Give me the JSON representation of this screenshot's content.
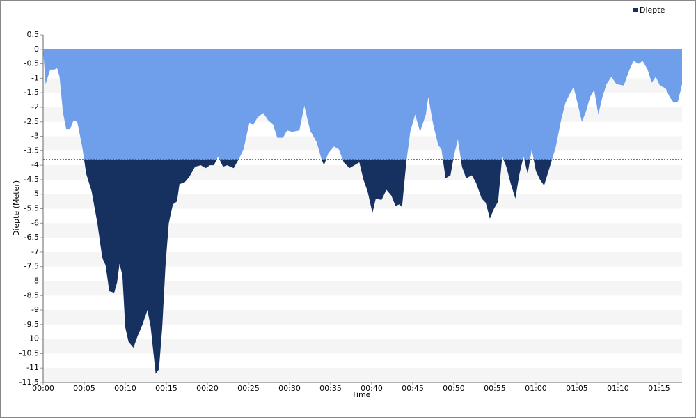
{
  "chart_data": {
    "type": "area",
    "x_label": "Time",
    "y_label": "Diepte (Meter)",
    "x": [
      0,
      0.3,
      0.85,
      1.35,
      1.7,
      2.0,
      2.4,
      2.8,
      3.3,
      3.7,
      4.15,
      4.75,
      5.25,
      5.9,
      6.6,
      7.2,
      7.6,
      8.05,
      8.65,
      9.0,
      9.3,
      9.65,
      10.0,
      10.4,
      11.0,
      11.5,
      12.1,
      12.7,
      13.1,
      13.7,
      14.1,
      14.5,
      14.9,
      15.3,
      15.8,
      16.3,
      16.6,
      17.2,
      17.8,
      18.5,
      19.2,
      19.8,
      20.3,
      20.8,
      21.3,
      21.9,
      22.4,
      23.2,
      23.9,
      24.4,
      25.1,
      25.6,
      26.1,
      26.8,
      27.4,
      28.0,
      28.5,
      29.2,
      29.7,
      30.3,
      31.2,
      31.8,
      32.5,
      33.3,
      33.9,
      34.2,
      34.7,
      35.4,
      36.0,
      36.6,
      37.3,
      37.9,
      38.5,
      39.0,
      39.5,
      40.1,
      40.5,
      41.2,
      41.8,
      42.4,
      42.9,
      43.4,
      43.7,
      44.2,
      44.7,
      45.3,
      45.9,
      46.6,
      46.9,
      47.5,
      48.1,
      48.5,
      49.0,
      49.6,
      50.0,
      50.5,
      51.0,
      51.5,
      52.2,
      52.7,
      53.4,
      53.9,
      54.4,
      54.9,
      55.4,
      55.9,
      56.4,
      56.9,
      57.5,
      58.0,
      58.5,
      59.0,
      59.5,
      60.0,
      60.5,
      61.0,
      61.7,
      62.4,
      63.1,
      63.6,
      64.1,
      64.6,
      65.1,
      65.6,
      66.1,
      66.6,
      67.1,
      67.6,
      68.1,
      68.6,
      69.2,
      69.8,
      70.7,
      71.4,
      71.9,
      72.5,
      73.0,
      73.6,
      74.1,
      74.6,
      75.1,
      75.8,
      76.3,
      76.8,
      77.3,
      77.8
    ],
    "series": [
      {
        "name": "Diepte",
        "color": "#16305f",
        "values": [
          0,
          -1.2,
          -0.7,
          -0.7,
          -0.65,
          -0.95,
          -2.15,
          -2.75,
          -2.75,
          -2.45,
          -2.5,
          -3.35,
          -4.3,
          -4.9,
          -6.0,
          -7.2,
          -7.45,
          -8.35,
          -8.4,
          -8.05,
          -7.4,
          -7.8,
          -9.6,
          -10.1,
          -10.3,
          -9.9,
          -9.5,
          -9.0,
          -9.6,
          -11.2,
          -11.05,
          -9.6,
          -7.45,
          -6.0,
          -5.35,
          -5.25,
          -4.65,
          -4.6,
          -4.4,
          -4.05,
          -4.0,
          -4.1,
          -4.0,
          -4.0,
          -3.7,
          -4.05,
          -4.0,
          -4.1,
          -3.75,
          -3.45,
          -2.55,
          -2.6,
          -2.35,
          -2.2,
          -2.45,
          -2.6,
          -3.05,
          -3.05,
          -2.8,
          -2.85,
          -2.8,
          -1.95,
          -2.8,
          -3.2,
          -3.8,
          -4.0,
          -3.6,
          -3.35,
          -3.45,
          -3.9,
          -4.1,
          -4.0,
          -3.9,
          -4.5,
          -4.9,
          -5.65,
          -5.15,
          -5.2,
          -4.85,
          -5.05,
          -5.4,
          -5.35,
          -5.45,
          -3.95,
          -2.85,
          -2.25,
          -2.85,
          -2.25,
          -1.65,
          -2.6,
          -3.3,
          -3.45,
          -4.45,
          -4.35,
          -3.7,
          -3.1,
          -4.05,
          -4.45,
          -4.35,
          -4.6,
          -5.15,
          -5.3,
          -5.85,
          -5.5,
          -5.25,
          -3.7,
          -4.05,
          -4.6,
          -5.15,
          -4.3,
          -3.7,
          -4.3,
          -3.45,
          -4.2,
          -4.5,
          -4.7,
          -4.05,
          -3.4,
          -2.4,
          -1.85,
          -1.55,
          -1.3,
          -1.9,
          -2.5,
          -2.15,
          -1.65,
          -1.4,
          -2.25,
          -1.65,
          -1.2,
          -0.95,
          -1.2,
          -1.25,
          -0.7,
          -0.4,
          -0.5,
          -0.4,
          -0.7,
          -1.15,
          -0.95,
          -1.25,
          -1.35,
          -1.65,
          -1.85,
          -1.8,
          -1.2
        ]
      }
    ],
    "above_threshold_color": "#6f9fea",
    "threshold": -3.8,
    "threshold_color": "#3a3acc",
    "xlim": [
      0,
      77.8
    ],
    "ylim": [
      -11.5,
      0.5
    ],
    "xticks": [
      {
        "value": 0,
        "label": "00:00"
      },
      {
        "value": 5,
        "label": "00:05"
      },
      {
        "value": 10,
        "label": "00:10"
      },
      {
        "value": 15,
        "label": "00:15"
      },
      {
        "value": 20,
        "label": "00:20"
      },
      {
        "value": 25,
        "label": "00:25"
      },
      {
        "value": 30,
        "label": "00:30"
      },
      {
        "value": 35,
        "label": "00:35"
      },
      {
        "value": 40,
        "label": "00:40"
      },
      {
        "value": 45,
        "label": "00:45"
      },
      {
        "value": 50,
        "label": "00:50"
      },
      {
        "value": 55,
        "label": "00:55"
      },
      {
        "value": 60,
        "label": "01:00"
      },
      {
        "value": 65,
        "label": "01:05"
      },
      {
        "value": 70,
        "label": "01:10"
      },
      {
        "value": 75,
        "label": "01:15"
      }
    ],
    "yticks": [
      0.5,
      0,
      -0.5,
      -1,
      -1.5,
      -2,
      -2.5,
      -3,
      -3.5,
      -4,
      -4.5,
      -5,
      -5.5,
      -6,
      -6.5,
      -7,
      -7.5,
      -8,
      -8.5,
      -9,
      -9.5,
      -10,
      -10.5,
      -11,
      -11.5
    ],
    "grid": true,
    "legend": "top-right"
  }
}
